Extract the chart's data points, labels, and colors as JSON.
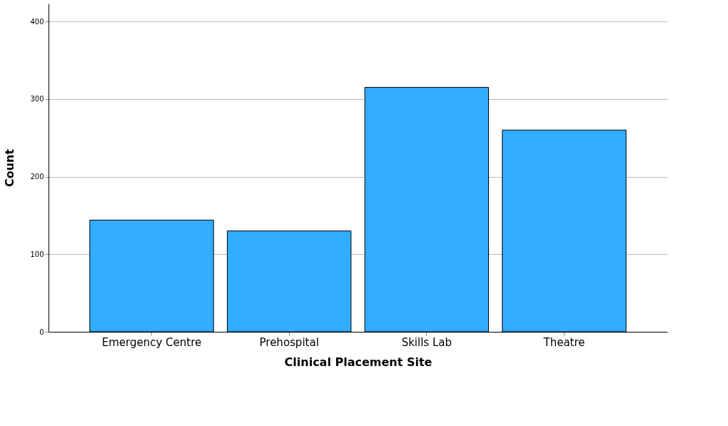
{
  "chart_data": {
    "type": "bar",
    "xlabel": "Clinical Placement Site",
    "ylabel": "Count",
    "categories": [
      "Emergency Centre",
      "Prehospital",
      "Skills Lab",
      "Theatre"
    ],
    "values": [
      144,
      130,
      315,
      260
    ],
    "color": "#31acff",
    "ylim": [
      0,
      423
    ],
    "yticks": [
      0,
      100,
      200,
      300,
      400
    ],
    "grid": "y"
  }
}
